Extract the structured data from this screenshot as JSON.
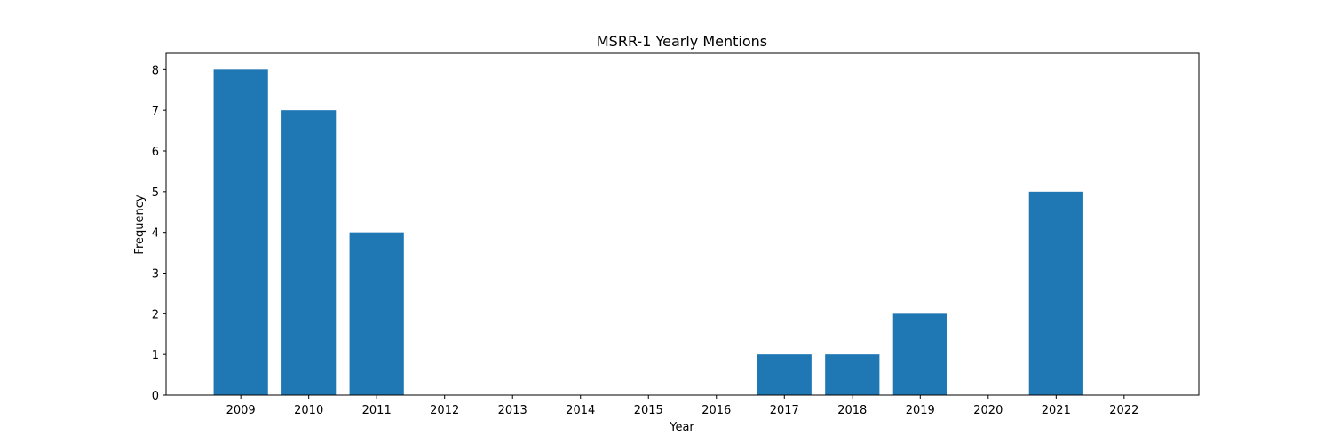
{
  "chart_data": {
    "type": "bar",
    "title": "MSRR-1 Yearly Mentions",
    "xlabel": "Year",
    "ylabel": "Frequency",
    "categories": [
      "2009",
      "2010",
      "2011",
      "2012",
      "2013",
      "2014",
      "2015",
      "2016",
      "2017",
      "2018",
      "2019",
      "2020",
      "2021",
      "2022"
    ],
    "values": [
      8,
      7,
      4,
      0,
      0,
      0,
      0,
      0,
      1,
      1,
      2,
      0,
      5,
      0
    ],
    "ylim": [
      0,
      8.4
    ],
    "yticks": [
      0,
      1,
      2,
      3,
      4,
      5,
      6,
      7,
      8
    ],
    "bar_color": "#1f77b4",
    "grid": false,
    "legend": "none"
  }
}
